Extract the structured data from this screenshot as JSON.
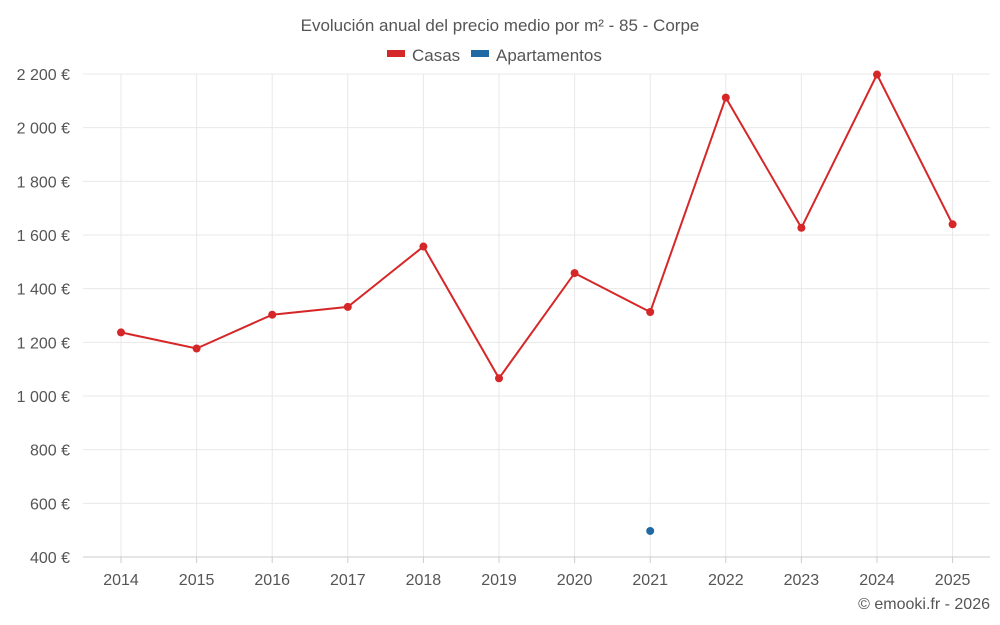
{
  "chart_data": {
    "type": "line",
    "title": "Evolución anual del precio medio por m² - 85 - Corpe",
    "categories": [
      "2014",
      "2015",
      "2016",
      "2017",
      "2018",
      "2019",
      "2020",
      "2021",
      "2022",
      "2023",
      "2024",
      "2025"
    ],
    "series": [
      {
        "name": "Casas",
        "color": "#d62728",
        "values": [
          1237,
          1177,
          1303,
          1332,
          1557,
          1066,
          1458,
          1313,
          2112,
          1627,
          2198,
          1640
        ]
      },
      {
        "name": "Apartamentos",
        "color": "#1f6aa5",
        "values": [
          null,
          null,
          null,
          null,
          null,
          null,
          null,
          497,
          null,
          null,
          null,
          null
        ]
      }
    ],
    "ylim": [
      400,
      2200
    ],
    "yticks": [
      400,
      600,
      800,
      1000,
      1200,
      1400,
      1600,
      1800,
      2000,
      2200
    ],
    "ytick_labels": [
      "400 €",
      "600 €",
      "800 €",
      "1 000 €",
      "1 200 €",
      "1 400 €",
      "1 600 €",
      "1 800 €",
      "2 000 €",
      "2 200 €"
    ],
    "xlabel": "",
    "ylabel": "",
    "grid": true,
    "legend_position": "top-center"
  },
  "credit": "© emooki.fr - 2026"
}
